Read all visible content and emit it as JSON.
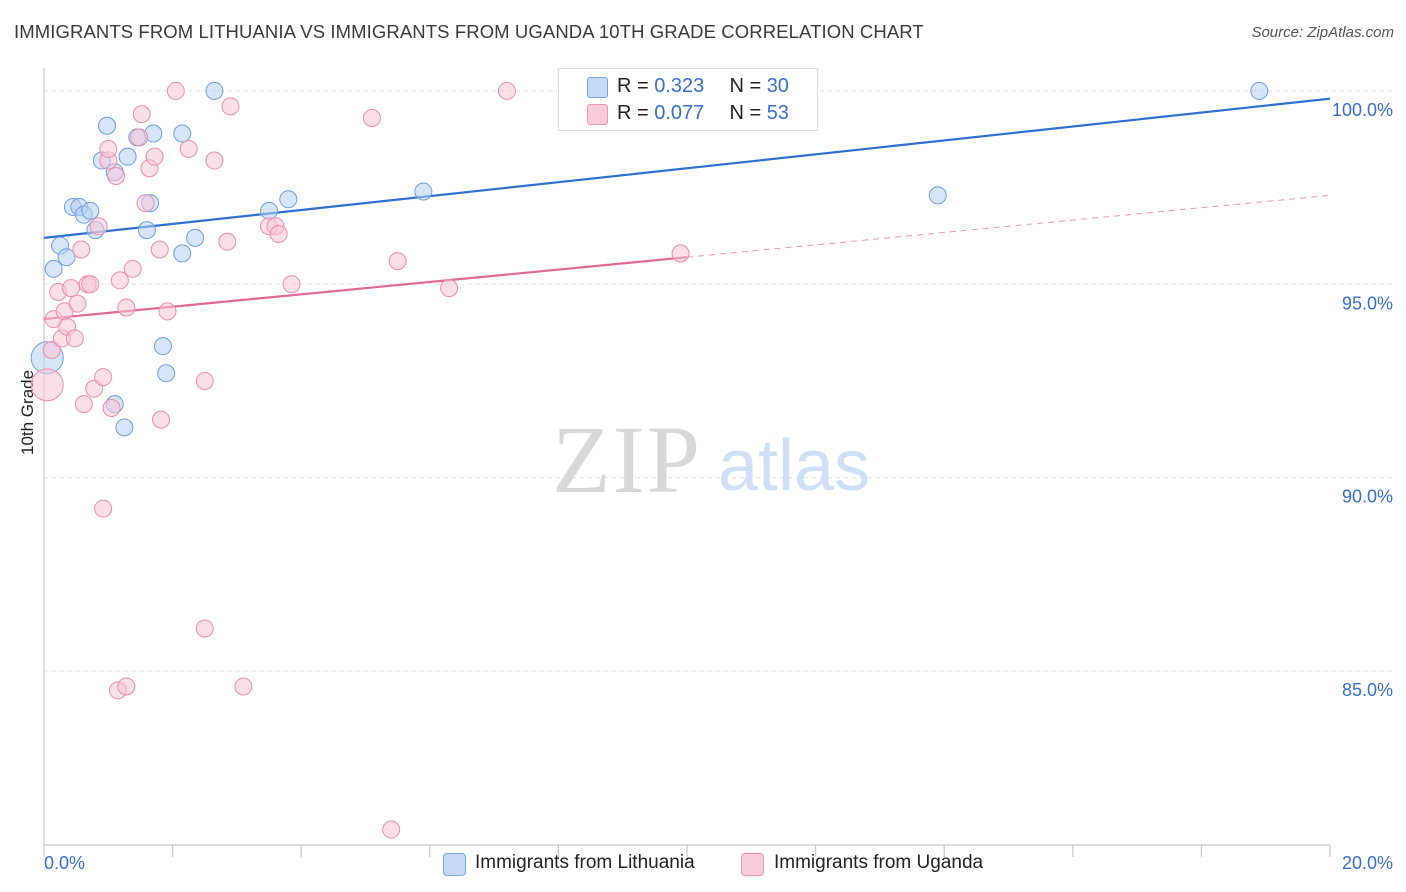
{
  "header": {
    "title": "IMMIGRANTS FROM LITHUANIA VS IMMIGRANTS FROM UGANDA 10TH GRADE CORRELATION CHART",
    "source": "Source: ZipAtlas.com"
  },
  "watermark": {
    "zip": "ZIP",
    "atlas": "atlas"
  },
  "legend": {
    "r_label": "R =",
    "n_label": "N =",
    "series": [
      {
        "r": "0.323",
        "n": "30"
      },
      {
        "r": "0.077",
        "n": "53"
      }
    ]
  },
  "chart_data": {
    "type": "scatter",
    "title": "IMMIGRANTS FROM LITHUANIA VS IMMIGRANTS FROM UGANDA 10TH GRADE CORRELATION CHART",
    "xlabel": "",
    "ylabel": "10th Grade",
    "xlim": [
      0,
      20
    ],
    "ylim": [
      80.5,
      100.8
    ],
    "x_tick_labels": [
      "0.0%",
      "20.0%"
    ],
    "y_ticks": [
      100,
      95,
      90,
      85
    ],
    "y_tick_labels": [
      "100.0%",
      "95.0%",
      "90.0%",
      "85.0%"
    ],
    "grid": true,
    "legend_position": "top-center",
    "series": [
      {
        "name": "Immigrants from Lithuania",
        "color": "#6f9fe0",
        "fill": "#b7cff3",
        "line_color": "#2f6fcf",
        "trend": {
          "x0": 0.0,
          "y0": 96.2,
          "x1": 20.0,
          "y1": 99.8
        },
        "points": [
          {
            "x": 0.15,
            "y": 95.4
          },
          {
            "x": 0.25,
            "y": 96.0
          },
          {
            "x": 0.35,
            "y": 95.7
          },
          {
            "x": 0.45,
            "y": 97.0
          },
          {
            "x": 0.55,
            "y": 97.0
          },
          {
            "x": 0.62,
            "y": 96.8
          },
          {
            "x": 0.72,
            "y": 96.9
          },
          {
            "x": 0.8,
            "y": 96.4
          },
          {
            "x": 0.9,
            "y": 98.2
          },
          {
            "x": 0.98,
            "y": 99.1
          },
          {
            "x": 1.1,
            "y": 97.9
          },
          {
            "x": 1.3,
            "y": 98.3
          },
          {
            "x": 1.45,
            "y": 98.8
          },
          {
            "x": 1.6,
            "y": 96.4
          },
          {
            "x": 1.65,
            "y": 97.1
          },
          {
            "x": 1.7,
            "y": 98.9
          },
          {
            "x": 2.15,
            "y": 95.8
          },
          {
            "x": 2.15,
            "y": 98.9
          },
          {
            "x": 2.35,
            "y": 96.2
          },
          {
            "x": 2.65,
            "y": 100.0
          },
          {
            "x": 3.5,
            "y": 96.9
          },
          {
            "x": 3.8,
            "y": 97.2
          },
          {
            "x": 5.9,
            "y": 97.4
          },
          {
            "x": 1.85,
            "y": 93.4
          },
          {
            "x": 1.9,
            "y": 92.7
          },
          {
            "x": 1.1,
            "y": 91.9
          },
          {
            "x": 1.25,
            "y": 91.3
          },
          {
            "x": 0.05,
            "y": 93.1
          },
          {
            "x": 13.9,
            "y": 97.3
          },
          {
            "x": 18.9,
            "y": 100.0
          }
        ]
      },
      {
        "name": "Immigrants from Uganda",
        "color": "#ea8fab",
        "fill": "#f7c4d4",
        "line_color": "#e06a96",
        "trend": {
          "x0": 0.0,
          "y0": 94.1,
          "x1": 10.0,
          "y1": 95.7
        },
        "trend_extension": {
          "x0": 10.0,
          "y0": 95.7,
          "x1": 20.0,
          "y1": 97.3
        },
        "points": [
          {
            "x": 0.05,
            "y": 92.4
          },
          {
            "x": 0.12,
            "y": 93.3
          },
          {
            "x": 0.15,
            "y": 94.1
          },
          {
            "x": 0.22,
            "y": 94.8
          },
          {
            "x": 0.28,
            "y": 93.6
          },
          {
            "x": 0.32,
            "y": 94.3
          },
          {
            "x": 0.36,
            "y": 93.9
          },
          {
            "x": 0.42,
            "y": 94.9
          },
          {
            "x": 0.48,
            "y": 93.6
          },
          {
            "x": 0.52,
            "y": 94.5
          },
          {
            "x": 0.58,
            "y": 95.9
          },
          {
            "x": 0.62,
            "y": 91.9
          },
          {
            "x": 0.68,
            "y": 95.0
          },
          {
            "x": 0.72,
            "y": 95.0
          },
          {
            "x": 0.78,
            "y": 92.3
          },
          {
            "x": 0.85,
            "y": 96.5
          },
          {
            "x": 0.92,
            "y": 92.6
          },
          {
            "x": 1.0,
            "y": 98.2
          },
          {
            "x": 1.05,
            "y": 91.8
          },
          {
            "x": 1.12,
            "y": 97.8
          },
          {
            "x": 1.18,
            "y": 95.1
          },
          {
            "x": 1.28,
            "y": 94.4
          },
          {
            "x": 1.38,
            "y": 95.4
          },
          {
            "x": 1.48,
            "y": 98.8
          },
          {
            "x": 1.52,
            "y": 99.4
          },
          {
            "x": 1.58,
            "y": 97.1
          },
          {
            "x": 1.64,
            "y": 98.0
          },
          {
            "x": 1.72,
            "y": 98.3
          },
          {
            "x": 1.8,
            "y": 95.9
          },
          {
            "x": 1.82,
            "y": 91.5
          },
          {
            "x": 1.92,
            "y": 94.3
          },
          {
            "x": 2.05,
            "y": 100.0
          },
          {
            "x": 2.25,
            "y": 98.5
          },
          {
            "x": 2.5,
            "y": 92.5
          },
          {
            "x": 2.65,
            "y": 98.2
          },
          {
            "x": 2.85,
            "y": 96.1
          },
          {
            "x": 2.9,
            "y": 99.6
          },
          {
            "x": 3.5,
            "y": 96.5
          },
          {
            "x": 3.6,
            "y": 96.5
          },
          {
            "x": 3.65,
            "y": 96.3
          },
          {
            "x": 3.85,
            "y": 95.0
          },
          {
            "x": 5.1,
            "y": 99.3
          },
          {
            "x": 5.5,
            "y": 95.6
          },
          {
            "x": 6.3,
            "y": 94.9
          },
          {
            "x": 7.2,
            "y": 100.0
          },
          {
            "x": 9.9,
            "y": 95.8
          },
          {
            "x": 0.92,
            "y": 89.2
          },
          {
            "x": 1.0,
            "y": 98.5
          },
          {
            "x": 2.5,
            "y": 86.1
          },
          {
            "x": 1.15,
            "y": 84.5
          },
          {
            "x": 1.28,
            "y": 84.6
          },
          {
            "x": 3.1,
            "y": 84.6
          },
          {
            "x": 5.4,
            "y": 80.9
          }
        ]
      }
    ]
  }
}
